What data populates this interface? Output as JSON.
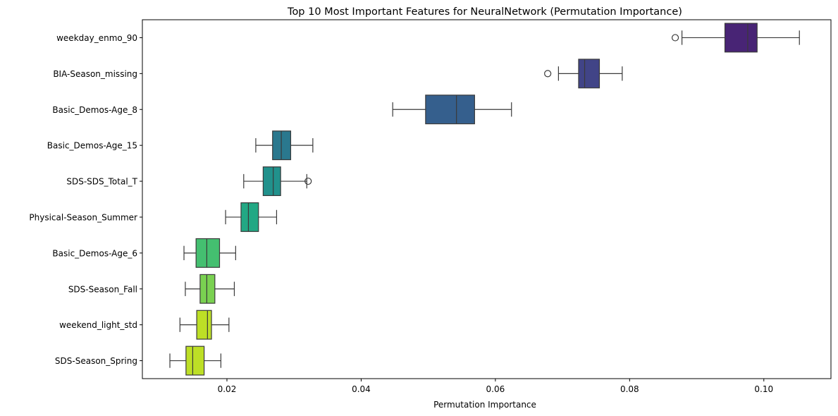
{
  "chart_data": {
    "type": "box",
    "orientation": "horizontal",
    "title": "Top 10 Most Important Features for NeuralNetwork (Permutation Importance)",
    "xlabel": "Permutation Importance",
    "ylabel": "",
    "xlim": [
      0.0074,
      0.11
    ],
    "xticks": [
      0.02,
      0.04,
      0.06,
      0.08,
      0.1
    ],
    "xtick_labels": [
      "0.02",
      "0.04",
      "0.06",
      "0.08",
      "0.10"
    ],
    "grid": false,
    "palette": "viridis",
    "categories": [
      "weekday_enmo_90",
      "BIA-Season_missing",
      "Basic_Demos-Age_8",
      "Basic_Demos-Age_15",
      "SDS-SDS_Total_T",
      "Physical-Season_Summer",
      "Basic_Demos-Age_6",
      "SDS-Season_Fall",
      "weekend_light_std",
      "SDS-Season_Spring"
    ],
    "boxes": [
      {
        "whisker_low": 0.0878,
        "q1": 0.0942,
        "median": 0.0976,
        "q3": 0.099,
        "whisker_high": 0.1053,
        "outliers": [
          0.0868
        ],
        "color": "#482475"
      },
      {
        "whisker_low": 0.0694,
        "q1": 0.0724,
        "median": 0.0733,
        "q3": 0.0755,
        "whisker_high": 0.0789,
        "outliers": [
          0.0678
        ],
        "color": "#414487"
      },
      {
        "whisker_low": 0.0447,
        "q1": 0.0496,
        "median": 0.0542,
        "q3": 0.0569,
        "whisker_high": 0.0624,
        "outliers": [],
        "color": "#355f8d"
      },
      {
        "whisker_low": 0.0243,
        "q1": 0.0268,
        "median": 0.0281,
        "q3": 0.0295,
        "whisker_high": 0.0328,
        "outliers": [],
        "color": "#2a788e"
      },
      {
        "whisker_low": 0.0225,
        "q1": 0.0254,
        "median": 0.0269,
        "q3": 0.028,
        "whisker_high": 0.0319,
        "outliers": [
          0.0321
        ],
        "color": "#21918c"
      },
      {
        "whisker_low": 0.0198,
        "q1": 0.0221,
        "median": 0.0232,
        "q3": 0.0247,
        "whisker_high": 0.0274,
        "outliers": [],
        "color": "#22a884"
      },
      {
        "whisker_low": 0.0136,
        "q1": 0.0154,
        "median": 0.017,
        "q3": 0.0189,
        "whisker_high": 0.0213,
        "outliers": [],
        "color": "#44bf70"
      },
      {
        "whisker_low": 0.0138,
        "q1": 0.016,
        "median": 0.017,
        "q3": 0.0182,
        "whisker_high": 0.0211,
        "outliers": [],
        "color": "#7ad151"
      },
      {
        "whisker_low": 0.013,
        "q1": 0.0155,
        "median": 0.0171,
        "q3": 0.0177,
        "whisker_high": 0.0203,
        "outliers": [],
        "color": "#bddf26"
      },
      {
        "whisker_low": 0.0115,
        "q1": 0.0139,
        "median": 0.0149,
        "q3": 0.0166,
        "whisker_high": 0.0191,
        "outliers": [],
        "color": "#bddf26"
      }
    ]
  }
}
